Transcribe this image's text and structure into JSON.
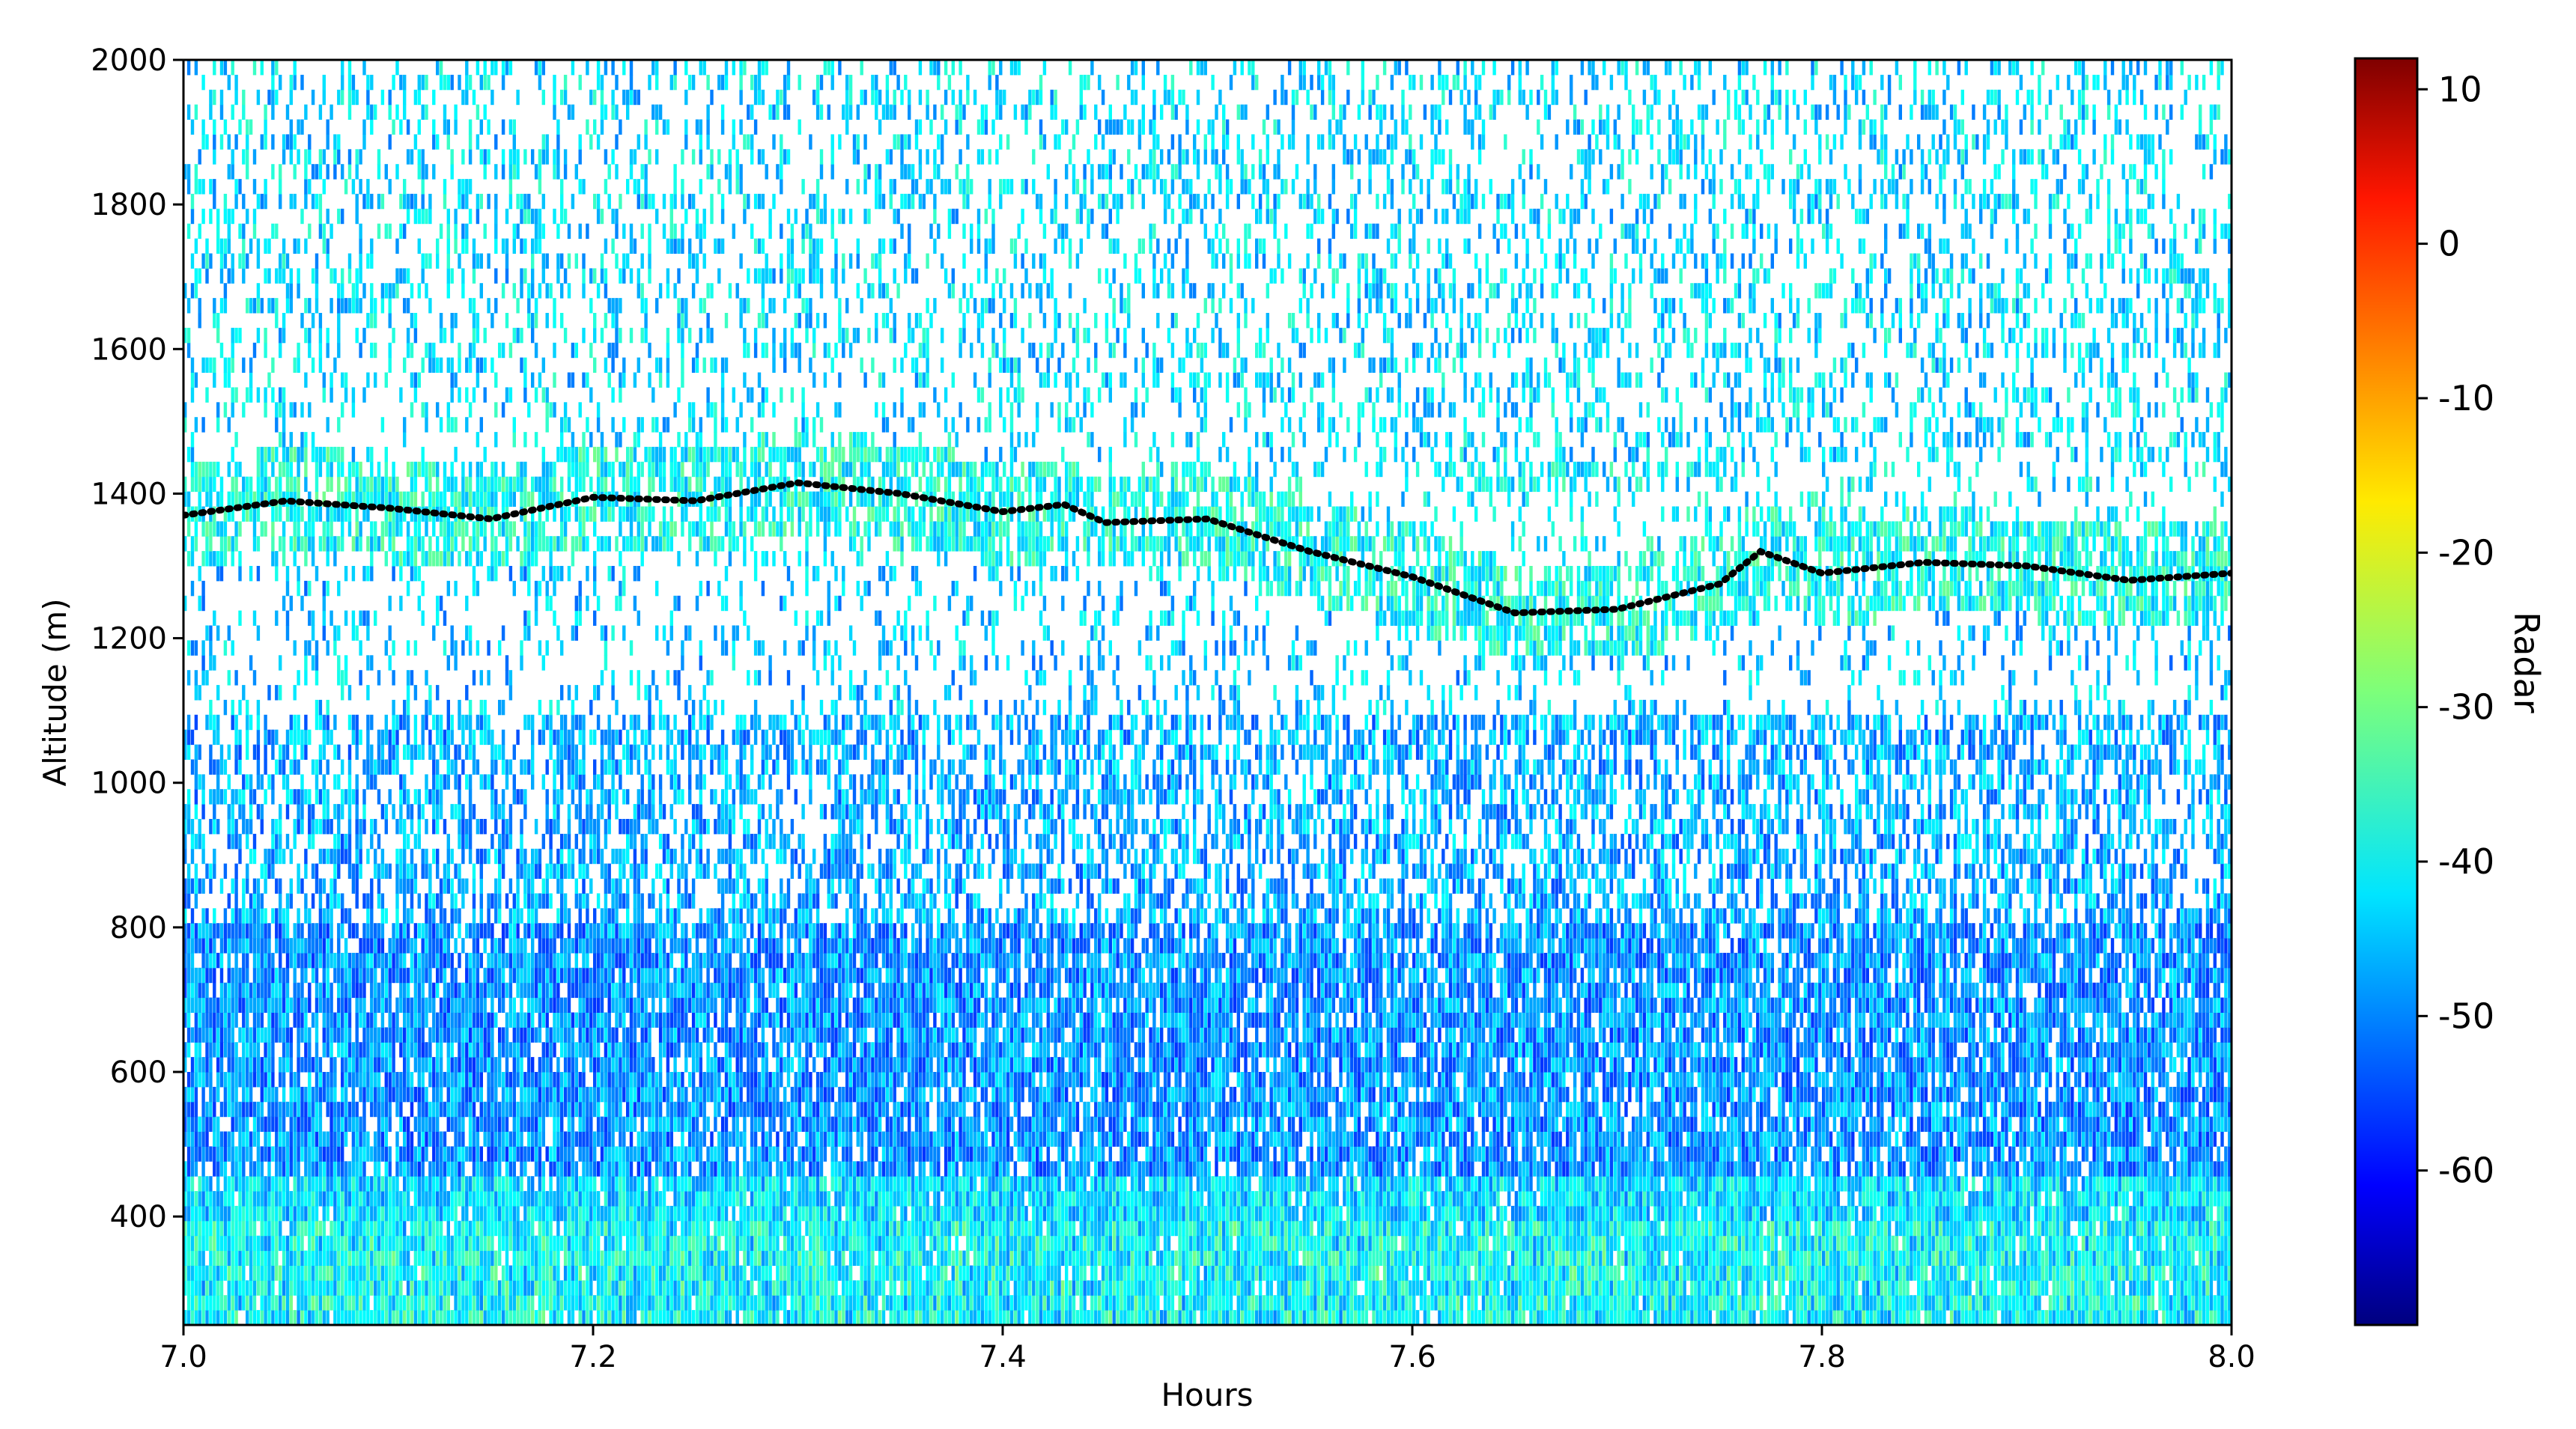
{
  "chart_data": {
    "type": "heatmap",
    "title": "",
    "xlabel": "Hours",
    "ylabel": "Altitude (m)",
    "colorbar_label": "Radar",
    "xlim": [
      7.0,
      8.0
    ],
    "ylim": [
      250,
      2000
    ],
    "x_ticks": [
      7.0,
      7.2,
      7.4,
      7.6,
      7.8,
      8.0
    ],
    "x_tick_labels": [
      "7.0",
      "7.2",
      "7.4",
      "7.6",
      "7.8",
      "8.0"
    ],
    "y_ticks": [
      400,
      600,
      800,
      1000,
      1200,
      1400,
      1600,
      1800,
      2000
    ],
    "y_tick_labels": [
      "400",
      "600",
      "800",
      "1000",
      "1200",
      "1400",
      "1600",
      "1800",
      "2000"
    ],
    "colorbar_range": [
      -70,
      12
    ],
    "colorbar_ticks": [
      10,
      0,
      -10,
      -20,
      -30,
      -40,
      -50,
      -60
    ],
    "colorbar_tick_labels": [
      "10",
      "0",
      "-10",
      "-20",
      "-30",
      "-40",
      "-50",
      "-60"
    ],
    "colormap": "jet",
    "grid": false,
    "heatmap_description_bands": [
      {
        "alt_range": [
          250,
          450
        ],
        "typical_dbz": -42,
        "coverage": 0.95
      },
      {
        "alt_range": [
          450,
          800
        ],
        "typical_dbz": -48,
        "coverage": 0.85
      },
      {
        "alt_range": [
          800,
          1100
        ],
        "typical_dbz": -46,
        "coverage": 0.55
      },
      {
        "alt_range": [
          1100,
          1300
        ],
        "typical_dbz": -44,
        "coverage": 0.25
      },
      {
        "alt_range": [
          1300,
          1450
        ],
        "typical_dbz": -40,
        "coverage": 0.55
      },
      {
        "alt_range": [
          1450,
          2000
        ],
        "typical_dbz": -42,
        "coverage": 0.3
      }
    ],
    "series": [
      {
        "style": "dotted",
        "color": "#000000",
        "x": [
          7.0,
          7.05,
          7.1,
          7.15,
          7.2,
          7.25,
          7.3,
          7.35,
          7.4,
          7.43,
          7.45,
          7.5,
          7.55,
          7.6,
          7.65,
          7.7,
          7.75,
          7.77,
          7.8,
          7.85,
          7.9,
          7.95,
          8.0
        ],
        "values": [
          1370,
          1390,
          1380,
          1365,
          1395,
          1390,
          1415,
          1400,
          1375,
          1385,
          1360,
          1365,
          1320,
          1285,
          1235,
          1240,
          1275,
          1320,
          1290,
          1305,
          1300,
          1280,
          1290
        ]
      }
    ]
  }
}
